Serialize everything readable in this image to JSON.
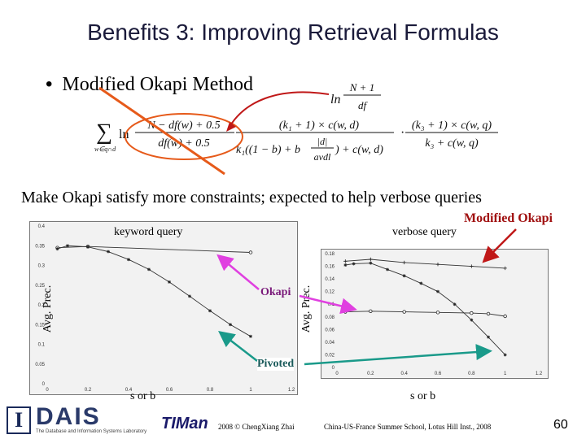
{
  "slide": {
    "title": "Benefits 3: Improving Retrieval Formulas",
    "bullet": "Modified Okapi Method",
    "subtitle": "Make Okapi satisfy more constraints; expected to help verbose queries",
    "page_number": "60"
  },
  "formula": {
    "sum_symbol": "∑",
    "sum_subscript": "w∈q∩d",
    "ln": "ln",
    "orig_num": "N − df(w) + 0.5",
    "orig_den": "df(w) + 0.5",
    "mod_num": "N + 1",
    "mod_den": "df",
    "tf_num": "(k₁ + 1) × c(w, d)",
    "tf_den_a": "k₁((1 − b) + b",
    "tf_den_frac_num": "|d|",
    "tf_den_frac_den": "avdl",
    "tf_den_b": ") + c(w, d)",
    "qtf_num": "(k₃ + 1) × c(w, q)",
    "qtf_den": "k₃ + c(w, q)",
    "dot": "·"
  },
  "annotations": {
    "okapi": "Okapi",
    "pivoted": "Pivoted",
    "modified_okapi": "Modified Okapi",
    "colors": {
      "okapi_arrow": "#e040e0",
      "pivoted_arrow": "#1a9a8a",
      "modified_arrow": "#c01818",
      "strike": "#e65a1a"
    }
  },
  "chart_data": [
    {
      "type": "line",
      "title": "keyword query",
      "xlabel": "s or b",
      "ylabel": "Avg. Prec.",
      "xlim": [
        0,
        1.2
      ],
      "ylim": [
        0,
        0.4
      ],
      "xticks": [
        "0",
        "0.2",
        "0.4",
        "0.6",
        "0.8",
        "1",
        "1.2"
      ],
      "yticks": [
        "0",
        "0.05",
        "0.1",
        "0.15",
        "0.2",
        "0.25",
        "0.3",
        "0.35",
        "0.4"
      ],
      "series": [
        {
          "marker": "circle",
          "x": [
            0.05,
            0.2,
            1.0
          ],
          "y": [
            0.345,
            0.348,
            0.333
          ]
        },
        {
          "marker": "star",
          "x": [
            0.05,
            0.1,
            0.2,
            0.3,
            0.4,
            0.5,
            0.6,
            0.7,
            0.8,
            0.9,
            1.0
          ],
          "y": [
            0.342,
            0.35,
            0.347,
            0.335,
            0.315,
            0.29,
            0.258,
            0.222,
            0.185,
            0.15,
            0.12
          ]
        }
      ]
    },
    {
      "type": "line",
      "title": "verbose query",
      "xlabel": "s or b",
      "ylabel": "Avg. Prec.",
      "xlim": [
        0,
        1.2
      ],
      "ylim": [
        0,
        0.18
      ],
      "xticks": [
        "0",
        "0.2",
        "0.4",
        "0.6",
        "0.8",
        "1",
        "1.2"
      ],
      "yticks": [
        "0",
        "0.02",
        "0.04",
        "0.06",
        "0.08",
        "0.1",
        "0.12",
        "0.14",
        "0.16",
        "0.18"
      ],
      "series": [
        {
          "marker": "plus",
          "x": [
            0.05,
            0.2,
            0.4,
            0.6,
            0.8,
            1.0
          ],
          "y": [
            0.168,
            0.171,
            0.166,
            0.163,
            0.16,
            0.157
          ]
        },
        {
          "marker": "star",
          "x": [
            0.05,
            0.1,
            0.2,
            0.3,
            0.4,
            0.5,
            0.6,
            0.7,
            0.8,
            0.9,
            1.0
          ],
          "y": [
            0.162,
            0.164,
            0.165,
            0.155,
            0.145,
            0.133,
            0.12,
            0.1,
            0.075,
            0.048,
            0.02
          ]
        },
        {
          "marker": "circle",
          "x": [
            0.05,
            0.2,
            0.4,
            0.6,
            0.8,
            0.9,
            1.0
          ],
          "y": [
            0.088,
            0.089,
            0.088,
            0.087,
            0.086,
            0.085,
            0.081
          ]
        }
      ]
    }
  ],
  "footer": {
    "copyright": "2008 © ChengXiang Zhai",
    "school": "China-US-France Summer School, Lotus Hill Inst., 2008",
    "dais_logo_text": "DAIS",
    "lab_name": "The Database and Information Systems Laboratory",
    "timan_logo_text": "TIMan",
    "uiuc_letter": "I"
  }
}
